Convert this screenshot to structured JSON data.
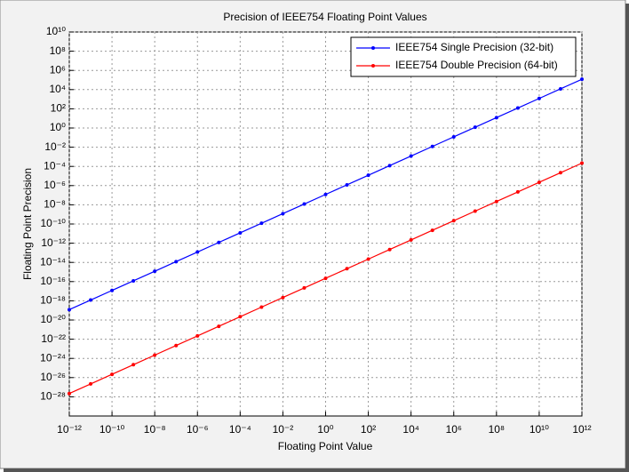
{
  "chart_data": {
    "type": "line",
    "title": "Precision of IEEE754 Floating Point Values",
    "xlabel": "Floating Point Value",
    "ylabel": "Floating Point Precision",
    "xscale": "log",
    "yscale": "log",
    "grid": true,
    "legend": "upper right",
    "xlim": [
      1e-12,
      1000000000000.0
    ],
    "ylim": [
      1e-30,
      10000000000.0
    ],
    "xticks": [
      {
        "value": 1e-12,
        "label": "10⁻¹²"
      },
      {
        "value": 1e-10,
        "label": "10⁻¹⁰"
      },
      {
        "value": 1e-08,
        "label": "10⁻⁸"
      },
      {
        "value": 1e-06,
        "label": "10⁻⁶"
      },
      {
        "value": 0.0001,
        "label": "10⁻⁴"
      },
      {
        "value": 0.01,
        "label": "10⁻²"
      },
      {
        "value": 1,
        "label": "10⁰"
      },
      {
        "value": 100.0,
        "label": "10²"
      },
      {
        "value": 10000.0,
        "label": "10⁴"
      },
      {
        "value": 1000000.0,
        "label": "10⁶"
      },
      {
        "value": 100000000.0,
        "label": "10⁸"
      },
      {
        "value": 10000000000.0,
        "label": "10¹⁰"
      },
      {
        "value": 1000000000000.0,
        "label": "10¹²"
      }
    ],
    "yticks": [
      {
        "value": 1e-28,
        "label": "10⁻²⁸"
      },
      {
        "value": 1e-26,
        "label": "10⁻²⁶"
      },
      {
        "value": 1e-24,
        "label": "10⁻²⁴"
      },
      {
        "value": 1e-22,
        "label": "10⁻²²"
      },
      {
        "value": 1e-20,
        "label": "10⁻²⁰"
      },
      {
        "value": 1e-18,
        "label": "10⁻¹⁸"
      },
      {
        "value": 1e-16,
        "label": "10⁻¹⁶"
      },
      {
        "value": 1e-14,
        "label": "10⁻¹⁴"
      },
      {
        "value": 1e-12,
        "label": "10⁻¹²"
      },
      {
        "value": 1e-10,
        "label": "10⁻¹⁰"
      },
      {
        "value": 1e-08,
        "label": "10⁻⁸"
      },
      {
        "value": 1e-06,
        "label": "10⁻⁶"
      },
      {
        "value": 0.0001,
        "label": "10⁻⁴"
      },
      {
        "value": 0.01,
        "label": "10⁻²"
      },
      {
        "value": 1,
        "label": "10⁰"
      },
      {
        "value": 100.0,
        "label": "10²"
      },
      {
        "value": 10000.0,
        "label": "10⁴"
      },
      {
        "value": 1000000.0,
        "label": "10⁶"
      },
      {
        "value": 100000000.0,
        "label": "10⁸"
      },
      {
        "value": 10000000000.0,
        "label": "10¹⁰"
      }
    ],
    "x": [
      1e-12,
      1e-11,
      1e-10,
      1e-09,
      1e-08,
      1e-07,
      1e-06,
      1e-05,
      0.0001,
      0.001,
      0.01,
      0.1,
      1,
      10.0,
      100.0,
      1000.0,
      10000.0,
      100000.0,
      1000000.0,
      10000000.0,
      100000000.0,
      1000000000.0,
      10000000000.0,
      100000000000.0,
      1000000000000.0
    ],
    "series": [
      {
        "name": "IEEE754 Single Precision (32-bit)",
        "color": "#0000ff",
        "values": [
          1.2e-19,
          1.2e-18,
          1.2e-17,
          1.2e-16,
          1.2e-15,
          1.2e-14,
          1.2e-13,
          1.2e-12,
          1.2e-11,
          1.2e-10,
          1.2e-09,
          1.2e-08,
          1.2e-07,
          1.2e-06,
          1.2e-05,
          0.00012,
          0.0012,
          0.012,
          0.12,
          1.2,
          12,
          120,
          1200,
          12000,
          120000
        ]
      },
      {
        "name": "IEEE754 Double Precision (64-bit)",
        "color": "#ff0000",
        "values": [
          2.2e-28,
          2.2e-27,
          2.2e-26,
          2.2e-25,
          2.2e-24,
          2.2e-23,
          2.2e-22,
          2.2e-21,
          2.2e-20,
          2.2e-19,
          2.2e-18,
          2.2e-17,
          2.2e-16,
          2.2e-15,
          2.2e-14,
          2.2e-13,
          2.2e-12,
          2.2e-11,
          2.2e-10,
          2.2e-09,
          2.2e-08,
          2.2e-07,
          2.2e-06,
          2.2e-05,
          0.00022
        ]
      }
    ]
  }
}
